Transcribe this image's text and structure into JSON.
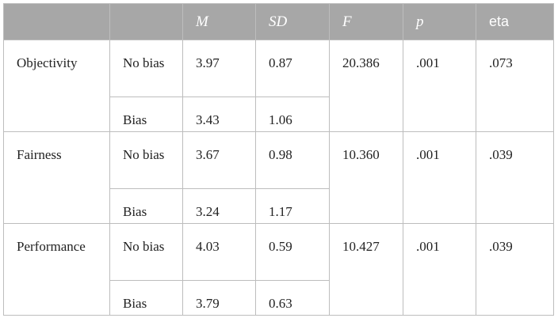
{
  "table": {
    "headers": [
      "",
      "",
      "M",
      "SD",
      "F",
      "p",
      "eta"
    ],
    "rows": [
      {
        "measure": "Objectivity",
        "groups": [
          {
            "label": "No bias",
            "M": "3.97",
            "SD": "0.87",
            "F": "20.386",
            "p": ".001",
            "eta": ".073"
          },
          {
            "label": "Bias",
            "M": "3.43",
            "SD": "1.06",
            "F": "",
            "p": "",
            "eta": ""
          }
        ]
      },
      {
        "measure": "Fairness",
        "groups": [
          {
            "label": "No bias",
            "M": "3.67",
            "SD": "0.98",
            "F": "10.360",
            "p": ".001",
            "eta": ".039"
          },
          {
            "label": "Bias",
            "M": "3.24",
            "SD": "1.17",
            "F": "",
            "p": "",
            "eta": ""
          }
        ]
      },
      {
        "measure": "Performance",
        "groups": [
          {
            "label": "No bias",
            "M": "4.03",
            "SD": "0.59",
            "F": "10.427",
            "p": ".001",
            "eta": ".039"
          },
          {
            "label": "Bias",
            "M": "3.79",
            "SD": "0.63",
            "F": "",
            "p": "",
            "eta": ""
          }
        ]
      }
    ]
  }
}
